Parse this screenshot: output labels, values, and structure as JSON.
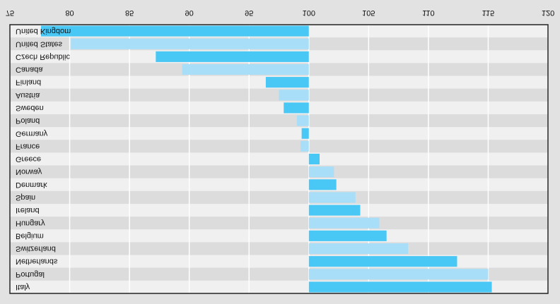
{
  "chart_data": {
    "type": "hbar",
    "categories": [
      "United Kingdom",
      "United States",
      "Czech Republic",
      "Canada",
      "Finland",
      "Austria",
      "Sweden",
      "Poland",
      "Germany",
      "France",
      "Greece",
      "Norway",
      "Denmark",
      "Spain",
      "Ireland",
      "Hungary",
      "Belgium",
      "Switzerland",
      "Netherlands",
      "Portugal",
      "Italy"
    ],
    "values": [
      77.6,
      80.1,
      87.2,
      89.4,
      96.4,
      97.5,
      97.9,
      99.0,
      99.4,
      99.3,
      100.9,
      102.1,
      102.3,
      103.9,
      104.3,
      105.9,
      106.5,
      108.3,
      112.4,
      115.0,
      115.3
    ],
    "colors": [
      "#4ac8f5",
      "#a9def8"
    ],
    "xlim": [
      75,
      120
    ],
    "xticks": [
      75,
      80,
      85,
      90,
      95,
      100,
      105,
      110,
      115,
      120
    ],
    "grid": true
  }
}
